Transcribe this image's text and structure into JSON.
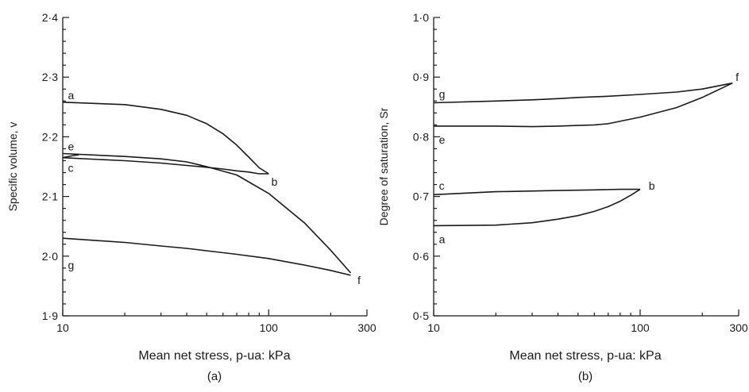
{
  "chart_data": [
    {
      "type": "line",
      "panel_label": "(a)",
      "xlabel": "Mean net stress, p-ua: kPa",
      "ylabel": "Specific volume, v",
      "x_scale": "log",
      "xlim": [
        10,
        300
      ],
      "ylim": [
        1.9,
        2.4
      ],
      "x_tick_labels": [
        "10",
        "100",
        "300"
      ],
      "x_tick_values": [
        10,
        100,
        300
      ],
      "y_tick_labels": [
        "1·9",
        "2·0",
        "2·1",
        "2·2",
        "2·3",
        "2·4"
      ],
      "y_tick_values": [
        1.9,
        2.0,
        2.1,
        2.2,
        2.3,
        2.4
      ],
      "grid": false,
      "series": [
        {
          "segment": "a-b",
          "x": [
            10,
            20,
            30,
            40,
            50,
            60,
            70,
            80,
            90,
            100
          ],
          "y": [
            2.258,
            2.254,
            2.246,
            2.236,
            2.222,
            2.205,
            2.186,
            2.166,
            2.148,
            2.138
          ]
        },
        {
          "segment": "b-c",
          "x": [
            100,
            90,
            80,
            70,
            60,
            50,
            40,
            30,
            20,
            15,
            10
          ],
          "y": [
            2.138,
            2.138,
            2.141,
            2.143,
            2.146,
            2.149,
            2.152,
            2.156,
            2.16,
            2.162,
            2.165
          ]
        },
        {
          "segment": "c-e",
          "x": [
            10,
            11,
            12
          ],
          "y": [
            2.165,
            2.168,
            2.17
          ]
        },
        {
          "segment": "e-f",
          "x": [
            10,
            20,
            30,
            40,
            50,
            70,
            100,
            150,
            200,
            250
          ],
          "y": [
            2.172,
            2.167,
            2.163,
            2.158,
            2.15,
            2.136,
            2.105,
            2.055,
            2.01,
            1.972
          ]
        },
        {
          "segment": "f-g",
          "x": [
            250,
            200,
            150,
            100,
            70,
            50,
            40,
            30,
            20,
            10
          ],
          "y": [
            1.968,
            1.976,
            1.985,
            1.996,
            2.003,
            2.009,
            2.013,
            2.017,
            2.023,
            2.03
          ]
        }
      ],
      "point_labels": [
        {
          "text": "a",
          "x": 10.6,
          "y": 2.27
        },
        {
          "text": "b",
          "x": 103,
          "y": 2.125
        },
        {
          "text": "c",
          "x": 10.6,
          "y": 2.148
        },
        {
          "text": "e",
          "x": 10.6,
          "y": 2.184
        },
        {
          "text": "f",
          "x": 270,
          "y": 1.96
        },
        {
          "text": "g",
          "x": 10.6,
          "y": 1.985
        }
      ]
    },
    {
      "type": "line",
      "panel_label": "(b)",
      "xlabel": "Mean net stress, p-ua: kPa",
      "ylabel": "Degree of saturation, Sr",
      "x_scale": "log",
      "xlim": [
        10,
        300
      ],
      "ylim": [
        0.5,
        1.0
      ],
      "x_tick_labels": [
        "10",
        "100",
        "300"
      ],
      "x_tick_values": [
        10,
        100,
        300
      ],
      "y_tick_labels": [
        "0·5",
        "0·6",
        "0·7",
        "0·8",
        "0·9",
        "1·0"
      ],
      "y_tick_values": [
        0.5,
        0.6,
        0.7,
        0.8,
        0.9,
        1.0
      ],
      "grid": false,
      "series": [
        {
          "segment": "a-b",
          "x": [
            10,
            20,
            30,
            40,
            50,
            60,
            70,
            80,
            90,
            100
          ],
          "y": [
            0.651,
            0.652,
            0.656,
            0.662,
            0.668,
            0.675,
            0.683,
            0.692,
            0.702,
            0.712
          ]
        },
        {
          "segment": "b-c",
          "x": [
            100,
            80,
            60,
            40,
            20,
            10
          ],
          "y": [
            0.712,
            0.712,
            0.711,
            0.71,
            0.708,
            0.703
          ]
        },
        {
          "segment": "e-f",
          "x": [
            10,
            20,
            30,
            40,
            50,
            60,
            70,
            100,
            150,
            200,
            280
          ],
          "y": [
            0.818,
            0.818,
            0.817,
            0.818,
            0.819,
            0.82,
            0.822,
            0.833,
            0.849,
            0.866,
            0.89
          ]
        },
        {
          "segment": "f-g",
          "x": [
            280,
            200,
            150,
            100,
            70,
            50,
            40,
            30,
            20,
            10
          ],
          "y": [
            0.89,
            0.88,
            0.875,
            0.871,
            0.868,
            0.866,
            0.864,
            0.862,
            0.86,
            0.857
          ]
        }
      ],
      "point_labels": [
        {
          "text": "a",
          "x": 10.6,
          "y": 0.628
        },
        {
          "text": "b",
          "x": 110,
          "y": 0.718
        },
        {
          "text": "c",
          "x": 10.6,
          "y": 0.718
        },
        {
          "text": "e",
          "x": 10.6,
          "y": 0.795
        },
        {
          "text": "f",
          "x": 290,
          "y": 0.9
        },
        {
          "text": "g",
          "x": 10.6,
          "y": 0.872
        }
      ]
    }
  ]
}
